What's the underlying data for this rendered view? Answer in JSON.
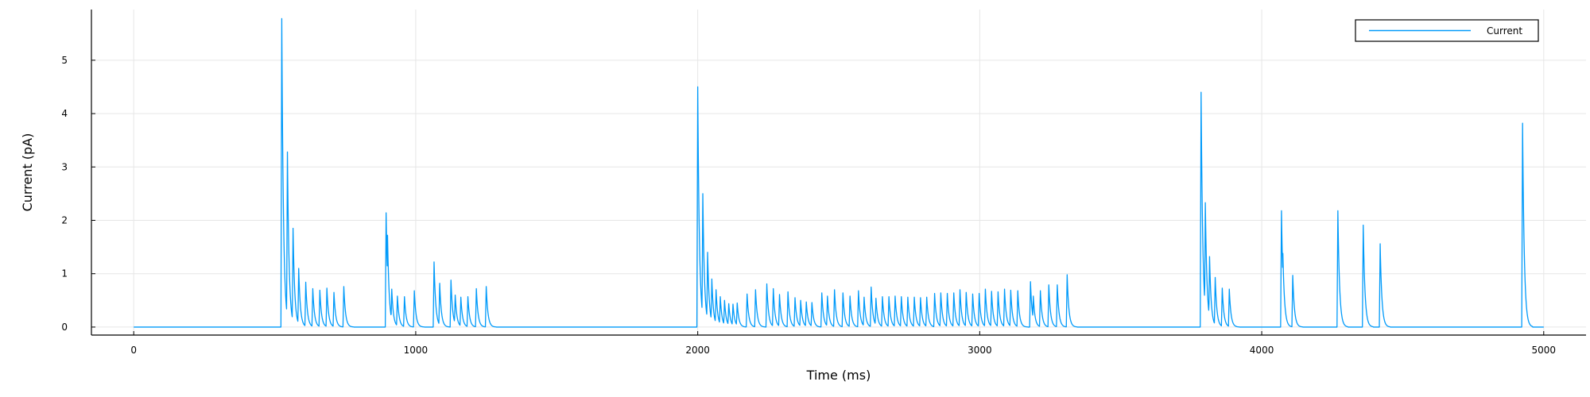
{
  "chart_data": {
    "type": "line",
    "title": "",
    "xlabel": "Time (ms)",
    "ylabel": "Current (pA)",
    "xlim": [
      -150,
      5150
    ],
    "ylim": [
      -0.15,
      5.95
    ],
    "xticks": [
      0,
      1000,
      2000,
      3000,
      4000,
      5000
    ],
    "yticks": [
      0,
      1,
      2,
      3,
      4,
      5
    ],
    "grid": true,
    "legend_position": "top-right",
    "colors": {
      "series": "#009AFA",
      "axis": "#000000",
      "grid": "#E6E6E6"
    },
    "series": [
      {
        "name": "Current",
        "baseline": 0,
        "spikes": [
          [
            525,
            5.78
          ],
          [
            545,
            3.28
          ],
          [
            565,
            1.85
          ],
          [
            585,
            1.1
          ],
          [
            610,
            0.84
          ],
          [
            635,
            0.72
          ],
          [
            660,
            0.69
          ],
          [
            685,
            0.73
          ],
          [
            710,
            0.65
          ],
          [
            745,
            0.76
          ],
          [
            895,
            2.14
          ],
          [
            900,
            1.72
          ],
          [
            915,
            0.71
          ],
          [
            935,
            0.58
          ],
          [
            960,
            0.57
          ],
          [
            995,
            0.68
          ],
          [
            1065,
            1.22
          ],
          [
            1085,
            0.82
          ],
          [
            1125,
            0.88
          ],
          [
            1140,
            0.6
          ],
          [
            1160,
            0.56
          ],
          [
            1185,
            0.57
          ],
          [
            1215,
            0.72
          ],
          [
            1250,
            0.76
          ],
          [
            2000,
            4.5
          ],
          [
            2018,
            2.5
          ],
          [
            2035,
            1.4
          ],
          [
            2050,
            0.9
          ],
          [
            2065,
            0.7
          ],
          [
            2080,
            0.57
          ],
          [
            2095,
            0.5
          ],
          [
            2110,
            0.44
          ],
          [
            2125,
            0.43
          ],
          [
            2140,
            0.45
          ],
          [
            2175,
            0.62
          ],
          [
            2205,
            0.7
          ],
          [
            2245,
            0.81
          ],
          [
            2268,
            0.72
          ],
          [
            2290,
            0.61
          ],
          [
            2320,
            0.66
          ],
          [
            2345,
            0.55
          ],
          [
            2365,
            0.5
          ],
          [
            2385,
            0.47
          ],
          [
            2405,
            0.46
          ],
          [
            2440,
            0.64
          ],
          [
            2460,
            0.58
          ],
          [
            2485,
            0.7
          ],
          [
            2515,
            0.64
          ],
          [
            2540,
            0.58
          ],
          [
            2570,
            0.68
          ],
          [
            2590,
            0.56
          ],
          [
            2615,
            0.75
          ],
          [
            2632,
            0.54
          ],
          [
            2655,
            0.57
          ],
          [
            2678,
            0.57
          ],
          [
            2700,
            0.58
          ],
          [
            2722,
            0.57
          ],
          [
            2745,
            0.56
          ],
          [
            2768,
            0.56
          ],
          [
            2790,
            0.55
          ],
          [
            2812,
            0.56
          ],
          [
            2840,
            0.63
          ],
          [
            2862,
            0.64
          ],
          [
            2885,
            0.63
          ],
          [
            2908,
            0.64
          ],
          [
            2930,
            0.7
          ],
          [
            2952,
            0.65
          ],
          [
            2975,
            0.62
          ],
          [
            2998,
            0.63
          ],
          [
            3020,
            0.71
          ],
          [
            3042,
            0.67
          ],
          [
            3065,
            0.66
          ],
          [
            3088,
            0.71
          ],
          [
            3110,
            0.69
          ],
          [
            3135,
            0.68
          ],
          [
            3180,
            0.85
          ],
          [
            3190,
            0.58
          ],
          [
            3215,
            0.68
          ],
          [
            3245,
            0.79
          ],
          [
            3275,
            0.79
          ],
          [
            3310,
            0.98
          ],
          [
            3785,
            4.4
          ],
          [
            3800,
            2.33
          ],
          [
            3815,
            1.32
          ],
          [
            3835,
            0.93
          ],
          [
            3860,
            0.73
          ],
          [
            3885,
            0.71
          ],
          [
            4070,
            2.18
          ],
          [
            4075,
            1.38
          ],
          [
            4110,
            0.97
          ],
          [
            4270,
            2.18
          ],
          [
            4360,
            1.91
          ],
          [
            4420,
            1.56
          ],
          [
            4925,
            3.82
          ]
        ]
      }
    ]
  }
}
